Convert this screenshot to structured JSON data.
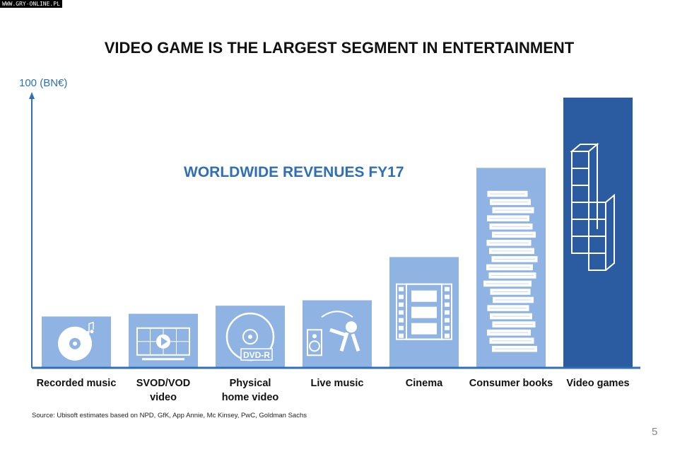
{
  "watermark": "WWW.GRY-ONLINE.PL",
  "page_number": "5",
  "source": "Source: Ubisoft estimates based on NPD, GfK, App Annie, Mc Kinsey, PwC, Goldman Sachs",
  "colors": {
    "bar": "#8fb4e3",
    "highlight_bar": "#2b5ba0",
    "axis": "#2e6fb8",
    "subtitle": "#2e6fb8",
    "icon": "#ffffff"
  },
  "chart_data": {
    "type": "bar",
    "title": "VIDEO GAME IS THE LARGEST SEGMENT IN ENTERTAINMENT",
    "subtitle": "WORLDWIDE REVENUES FY17",
    "ylabel": "100 (BN€)",
    "ylim": [
      0,
      100
    ],
    "categories": [
      "Recorded music",
      "SVOD/VOD\nvideo",
      "Physical\nhome video",
      "Live music",
      "Cinema",
      "Consumer books",
      "Video games"
    ],
    "values": [
      19,
      20,
      23,
      25,
      41,
      74,
      100
    ],
    "highlight": "Video games",
    "icons": [
      "music-disc-icon",
      "video-player-icon",
      "dvd-icon",
      "guitar-speaker-icon",
      "film-strip-icon",
      "book-stack-icon",
      "tetris-block-icon"
    ]
  }
}
